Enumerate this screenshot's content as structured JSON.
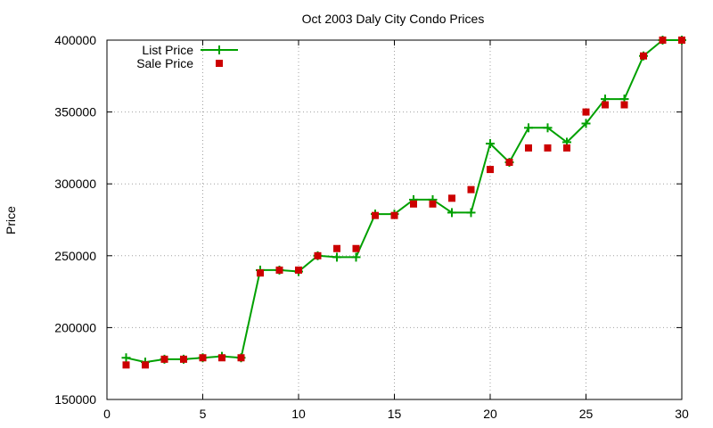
{
  "chart_data": {
    "type": "line",
    "title": "Oct 2003 Daly City Condo Prices",
    "xlabel": "",
    "ylabel": "Price",
    "xlim": [
      0,
      30
    ],
    "ylim": [
      150000,
      400000
    ],
    "x_ticks": [
      0,
      5,
      10,
      15,
      20,
      25,
      30
    ],
    "y_ticks": [
      150000,
      200000,
      250000,
      300000,
      350000,
      400000
    ],
    "grid": true,
    "legend_position": "top-left",
    "series": [
      {
        "name": "List Price",
        "style": "line-with-plus-markers",
        "color": "#00a000",
        "x": [
          1,
          2,
          3,
          4,
          5,
          6,
          7,
          8,
          9,
          10,
          11,
          12,
          13,
          14,
          15,
          16,
          17,
          18,
          19,
          20,
          21,
          22,
          23,
          24,
          25,
          26,
          27,
          28,
          29,
          30
        ],
        "values": [
          179000,
          176000,
          178000,
          178000,
          179000,
          180000,
          179000,
          240000,
          240000,
          239000,
          250000,
          249000,
          249000,
          279000,
          279000,
          289000,
          289000,
          280000,
          280000,
          328000,
          315000,
          339000,
          339000,
          329000,
          342000,
          359000,
          359000,
          389000,
          400000,
          400000
        ]
      },
      {
        "name": "Sale Price",
        "style": "square-markers",
        "color": "#cc0000",
        "x": [
          1,
          2,
          3,
          4,
          5,
          6,
          7,
          8,
          9,
          10,
          11,
          12,
          13,
          14,
          15,
          16,
          17,
          18,
          19,
          20,
          21,
          22,
          23,
          24,
          25,
          26,
          27,
          28,
          29,
          30
        ],
        "values": [
          174000,
          174000,
          178000,
          178000,
          179000,
          179000,
          179000,
          238000,
          240000,
          240000,
          250000,
          255000,
          255000,
          278000,
          278000,
          286000,
          286000,
          290000,
          296000,
          310000,
          315000,
          325000,
          325000,
          325000,
          350000,
          355000,
          355000,
          389000,
          400000,
          400000
        ]
      }
    ]
  }
}
